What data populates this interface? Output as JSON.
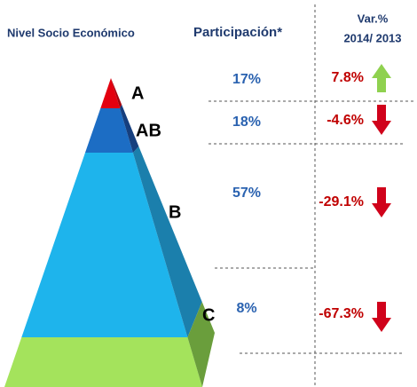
{
  "header": {
    "level": "Nivel Socio Económico",
    "participation": "Participación*",
    "variation": [
      "Var.%",
      "2014/ 2013"
    ]
  },
  "rows": [
    {
      "level": "A",
      "participation": "17%",
      "variation": "7.8%"
    },
    {
      "level": "AB",
      "participation": "18%",
      "variation": "-4.6%"
    },
    {
      "level": "B",
      "participation": "57%",
      "variation": "-29.1%"
    },
    {
      "level": "C",
      "participation": "8%",
      "variation": "-67.3%"
    }
  ]
}
